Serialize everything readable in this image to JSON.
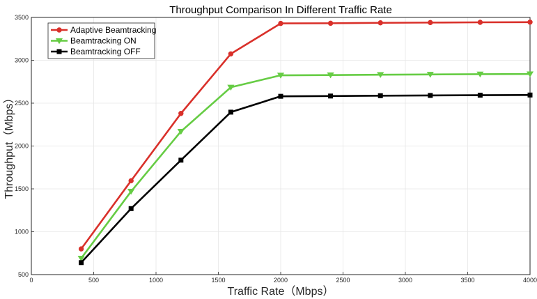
{
  "chart_data": {
    "type": "line",
    "title": "Throughput Comparison In Different Traffic Rate",
    "xlabel": "Traffic Rate（Mbps）",
    "ylabel": "Throughput（Mbps）",
    "xlim": [
      0,
      4000
    ],
    "ylim": [
      500,
      3500
    ],
    "xticks": [
      0,
      500,
      1000,
      1500,
      2000,
      2500,
      3000,
      3500,
      4000
    ],
    "yticks": [
      500,
      1000,
      1500,
      2000,
      2500,
      3000,
      3500
    ],
    "grid": true,
    "legend_position": "top-left",
    "x": [
      400,
      800,
      1200,
      1600,
      2000,
      2400,
      2800,
      3200,
      3600,
      4000
    ],
    "series": [
      {
        "name": "Adaptive Beamtracking",
        "color": "#d9302a",
        "marker": "circle",
        "values": [
          800,
          1595,
          2380,
          3075,
          3430,
          3432,
          3437,
          3440,
          3443,
          3445
        ]
      },
      {
        "name": "Beamtracking ON",
        "color": "#66cc44",
        "marker": "triangle-down",
        "values": [
          690,
          1470,
          2170,
          2685,
          2825,
          2828,
          2832,
          2835,
          2838,
          2840
        ]
      },
      {
        "name": "Beamtracking OFF",
        "color": "#000000",
        "marker": "square",
        "values": [
          640,
          1270,
          1835,
          2395,
          2580,
          2583,
          2587,
          2590,
          2593,
          2595
        ]
      }
    ]
  }
}
